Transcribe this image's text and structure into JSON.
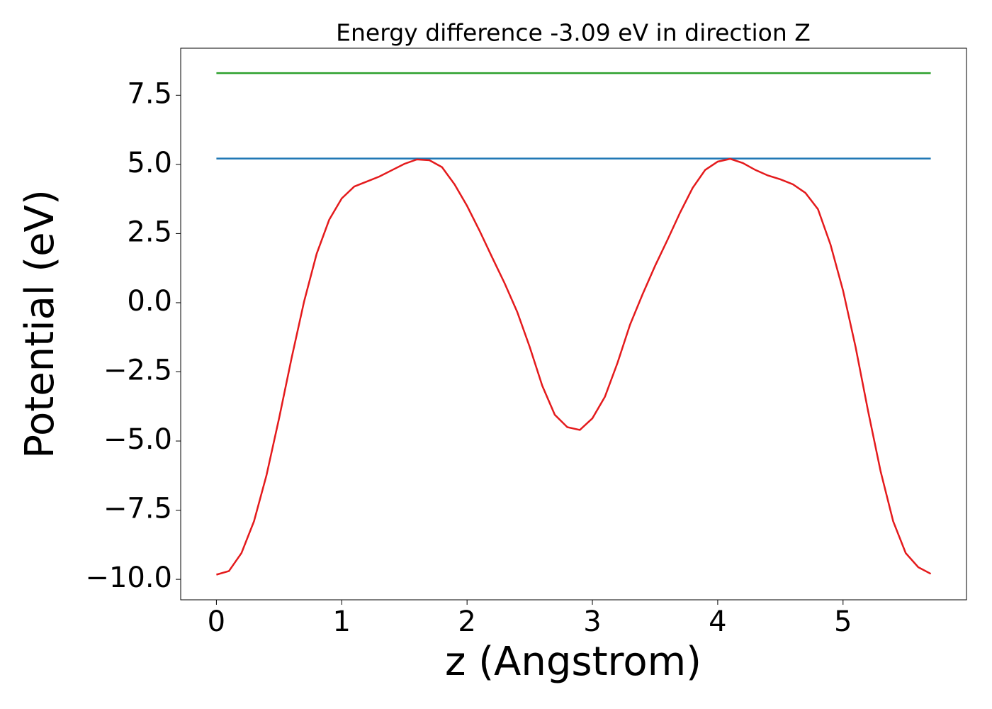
{
  "chart_data": {
    "type": "line",
    "title": "Energy difference -3.09 eV in direction Z",
    "x_label": "z (Angstrom)",
    "y_label": "Potential (eV)",
    "xlim": [
      -0.285,
      5.985
    ],
    "ylim": [
      -10.74,
      9.2
    ],
    "xticks": [
      0,
      1,
      2,
      3,
      4,
      5
    ],
    "yticks": [
      {
        "value": -10,
        "label": "−10.0"
      },
      {
        "value": -7.5,
        "label": "−7.5"
      },
      {
        "value": -5,
        "label": "−5.0"
      },
      {
        "value": -2.5,
        "label": "−2.5"
      },
      {
        "value": 0,
        "label": "0.0"
      },
      2.5,
      {
        "value": 5,
        "label": "5.0"
      },
      7.5
    ],
    "series": [
      {
        "color": "#2ca02c",
        "x": [
          0,
          5.7
        ],
        "values": [
          8.3,
          8.3
        ]
      },
      {
        "color": "#1f77b4",
        "x": [
          0,
          5.7
        ],
        "values": [
          5.21,
          5.21
        ]
      },
      {
        "color": "#e41a1c",
        "x": [
          0,
          0.1,
          0.2,
          0.3,
          0.4,
          0.5,
          0.6,
          0.7,
          0.8,
          0.9,
          1.0,
          1.1,
          1.2,
          1.3,
          1.4,
          1.5,
          1.6,
          1.7,
          1.8,
          1.9,
          2.0,
          2.1,
          2.2,
          2.3,
          2.4,
          2.5,
          2.6,
          2.7,
          2.8,
          2.9,
          3.0,
          3.1,
          3.2,
          3.3,
          3.4,
          3.5,
          3.6,
          3.7,
          3.8,
          3.9,
          4.0,
          4.1,
          4.2,
          4.3,
          4.4,
          4.5,
          4.6,
          4.7,
          4.8,
          4.9,
          5.0,
          5.1,
          5.2,
          5.3,
          5.4,
          5.5,
          5.6,
          5.7
        ],
        "values": [
          -9.83,
          -9.7,
          -9.05,
          -7.9,
          -6.23,
          -4.18,
          -2.0,
          0.05,
          1.77,
          3.0,
          3.77,
          4.2,
          4.38,
          4.56,
          4.79,
          5.02,
          5.18,
          5.15,
          4.9,
          4.28,
          3.5,
          2.6,
          1.64,
          0.7,
          -0.33,
          -1.6,
          -3.0,
          -4.05,
          -4.5,
          -4.6,
          -4.18,
          -3.4,
          -2.18,
          -0.8,
          0.3,
          1.33,
          2.28,
          3.26,
          4.15,
          4.8,
          5.1,
          5.2,
          5.05,
          4.8,
          4.6,
          4.46,
          4.28,
          3.97,
          3.38,
          2.1,
          0.44,
          -1.6,
          -3.92,
          -6.1,
          -7.9,
          -9.05,
          -9.56,
          -9.8
        ]
      }
    ]
  }
}
